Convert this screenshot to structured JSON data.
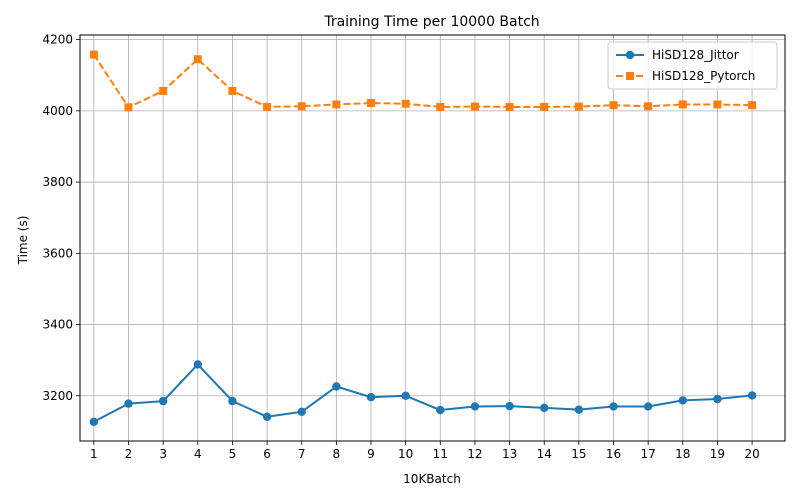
{
  "chart_data": {
    "type": "line",
    "title": "Training Time per 10000 Batch",
    "xlabel": "10KBatch",
    "ylabel": "Time (s)",
    "x": [
      1,
      2,
      3,
      4,
      5,
      6,
      7,
      8,
      9,
      10,
      11,
      12,
      13,
      14,
      15,
      16,
      17,
      18,
      19,
      20
    ],
    "xlim": [
      0.6,
      20.95
    ],
    "ylim": [
      3073,
      4213
    ],
    "yticks": [
      3200,
      3400,
      3600,
      3800,
      4000,
      4200
    ],
    "grid": true,
    "legend_position": "top-right",
    "series": [
      {
        "name": "HiSD128_Jittor",
        "color": "#1f77b4",
        "marker": "circle",
        "linestyle": "solid",
        "values": [
          3127,
          3178,
          3185,
          3288,
          3185,
          3141,
          3155,
          3226,
          3196,
          3200,
          3160,
          3170,
          3171,
          3166,
          3161,
          3170,
          3170,
          3187,
          3191,
          3201
        ]
      },
      {
        "name": "HiSD128_Pytorch",
        "color": "#ff7f0e",
        "marker": "square",
        "linestyle": "dashed",
        "values": [
          4158,
          4010,
          4056,
          4145,
          4056,
          4011,
          4013,
          4018,
          4022,
          4020,
          4011,
          4012,
          4011,
          4011,
          4012,
          4016,
          4013,
          4018,
          4018,
          4016
        ]
      }
    ]
  }
}
